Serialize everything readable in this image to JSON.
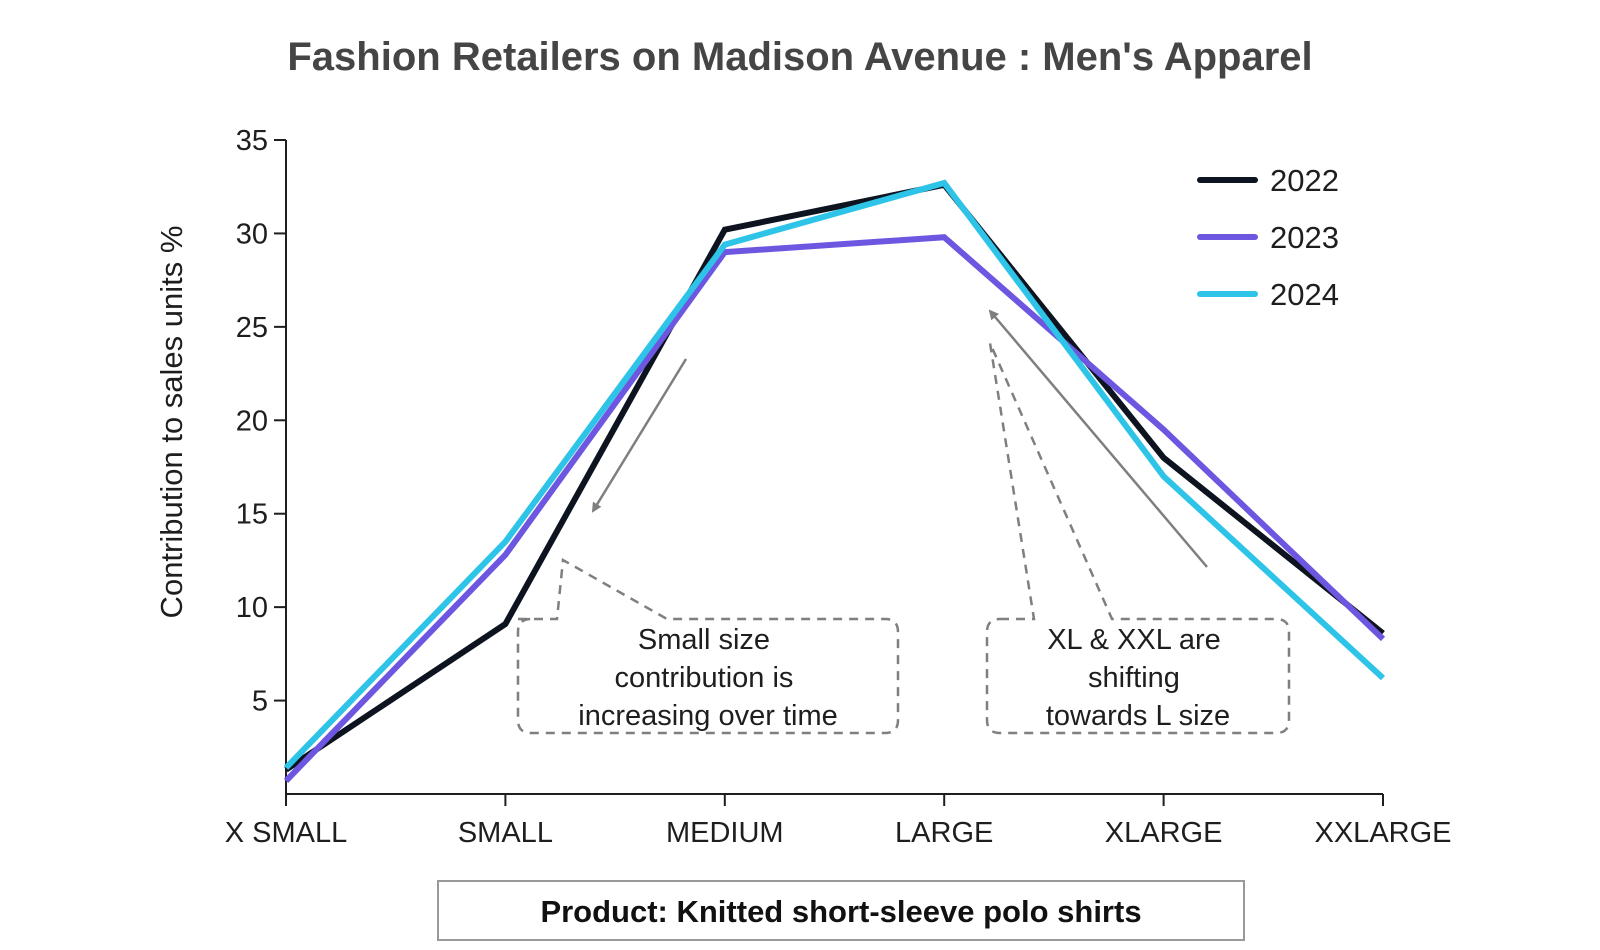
{
  "title": "Fashion Retailers on Madison Avenue : Men's Apparel",
  "product_label": "Product: Knitted short-sleeve polo shirts",
  "callouts": {
    "small": {
      "lines": [
        "Small size",
        "contribution  is",
        "increasing over time"
      ]
    },
    "xl": {
      "lines": [
        "XL & XXL are",
        "shifting",
        "towards L size"
      ]
    }
  },
  "colors": {
    "axis": "#1e1e1e",
    "annotation": "#7f7f7f",
    "product_box_border": "#999999"
  },
  "chart_data": {
    "type": "line",
    "title": "Fashion Retailers on Madison Avenue : Men's Apparel",
    "xlabel": "",
    "ylabel": "Contribution to sales units %",
    "categories": [
      "X SMALL",
      "SMALL",
      "MEDIUM",
      "LARGE",
      "XLARGE",
      "XXLARGE"
    ],
    "ylim": [
      0,
      35
    ],
    "yticks": [
      5,
      10,
      15,
      20,
      25,
      30,
      35
    ],
    "grid": false,
    "legend_position": "top-right",
    "series": [
      {
        "name": "2022",
        "color": "#0d1420",
        "values": [
          1.3,
          9.1,
          30.2,
          32.6,
          18.0,
          8.6
        ]
      },
      {
        "name": "2023",
        "color": "#6e57e0",
        "values": [
          0.7,
          12.8,
          29.0,
          29.8,
          19.5,
          8.3
        ]
      },
      {
        "name": "2024",
        "color": "#2ec4e8",
        "values": [
          1.4,
          13.5,
          29.4,
          32.7,
          17.0,
          6.2
        ]
      }
    ]
  }
}
